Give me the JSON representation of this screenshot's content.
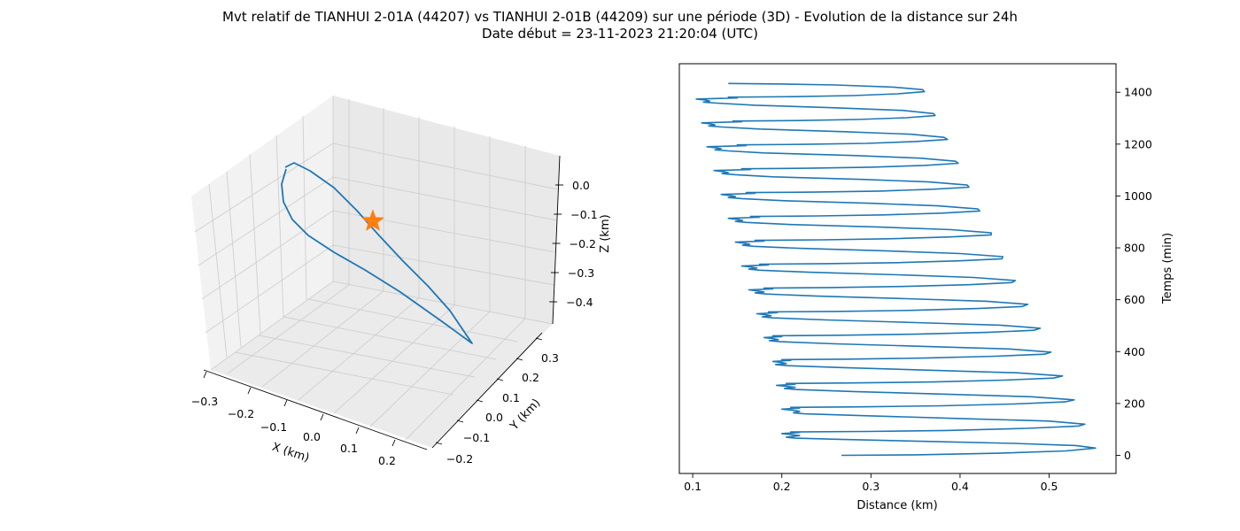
{
  "figure": {
    "title_line1": "Mvt relatif de TIANHUI 2-01A (44207) vs TIANHUI 2-01B (44209) sur une période (3D) - Evolution de la distance sur 24h",
    "title_line2": "Date début = 23-11-2023 21:20:04 (UTC)"
  },
  "colors": {
    "series": "#1f77b4",
    "marker": "#ff7f0e",
    "pane": "#f2f2f2",
    "grid": "#cfcfcf"
  },
  "chart_data": [
    {
      "type": "line3d",
      "xlabel": "X (km)",
      "ylabel": "Y (km)",
      "zlabel": "Z (km)",
      "xticks": [
        "−0.3",
        "−0.2",
        "−0.1",
        "0.0",
        "0.1",
        "0.2"
      ],
      "yticks": [
        "−0.2",
        "−0.1",
        "0.0",
        "0.1",
        "0.2",
        "0.3"
      ],
      "zticks": [
        "0.0",
        "−0.1",
        "−0.2",
        "−0.3",
        "−0.4"
      ],
      "grid": true,
      "marker": {
        "shape": "star",
        "label": ""
      }
    },
    {
      "type": "line",
      "xlabel": "Distance (km)",
      "ylabel": "Temps (min)",
      "xticks": [
        "0.1",
        "0.2",
        "0.3",
        "0.4",
        "0.5"
      ],
      "yticks": [
        "0",
        "200",
        "400",
        "600",
        "800",
        "1000",
        "1200",
        "1400"
      ],
      "xlim": [
        0.085,
        0.575
      ],
      "ylim": [
        -70,
        1510
      ],
      "y_axis_side": "right",
      "grid": false,
      "series": [
        {
          "points": [
            [
              0.267,
              0
            ],
            [
              0.351,
              2
            ],
            [
              0.444,
              8
            ],
            [
              0.519,
              17
            ],
            [
              0.552,
              28
            ],
            [
              0.53,
              38
            ],
            [
              0.46,
              46
            ],
            [
              0.36,
              54
            ],
            [
              0.26,
              62
            ],
            [
              0.215,
              66
            ],
            [
              0.205,
              70
            ],
            [
              0.22,
              76
            ],
            [
              0.21,
              80
            ],
            [
              0.2,
              84
            ],
            [
              0.22,
              88
            ],
            [
              0.21,
              90
            ],
            [
              0.297,
              92
            ],
            [
              0.385,
              96
            ],
            [
              0.475,
              104
            ],
            [
              0.533,
              113
            ],
            [
              0.54,
              120
            ],
            [
              0.5,
              132
            ],
            [
              0.4,
              142
            ],
            [
              0.3,
              152
            ],
            [
              0.225,
              160
            ],
            [
              0.213,
              164
            ],
            [
              0.22,
              170
            ],
            [
              0.212,
              174
            ],
            [
              0.2,
              178
            ],
            [
              0.22,
              182
            ],
            [
              0.21,
              185
            ],
            [
              0.29,
              187
            ],
            [
              0.38,
              191
            ],
            [
              0.46,
              198
            ],
            [
              0.518,
              206
            ],
            [
              0.528,
              214
            ],
            [
              0.48,
              226
            ],
            [
              0.38,
              236
            ],
            [
              0.28,
              246
            ],
            [
              0.215,
              254
            ],
            [
              0.203,
              258
            ],
            [
              0.215,
              262
            ],
            [
              0.205,
              266
            ],
            [
              0.194,
              270
            ],
            [
              0.215,
              274
            ],
            [
              0.205,
              277
            ],
            [
              0.28,
              279
            ],
            [
              0.37,
              283
            ],
            [
              0.45,
              290
            ],
            [
              0.505,
              298
            ],
            [
              0.515,
              306
            ],
            [
              0.465,
              318
            ],
            [
              0.37,
              328
            ],
            [
              0.27,
              338
            ],
            [
              0.205,
              346
            ],
            [
              0.193,
              350
            ],
            [
              0.205,
              354
            ],
            [
              0.2,
              358
            ],
            [
              0.19,
              362
            ],
            [
              0.21,
              366
            ],
            [
              0.2,
              369
            ],
            [
              0.275,
              371
            ],
            [
              0.36,
              375
            ],
            [
              0.44,
              382
            ],
            [
              0.495,
              390
            ],
            [
              0.502,
              398
            ],
            [
              0.455,
              410
            ],
            [
              0.36,
              420
            ],
            [
              0.26,
              430
            ],
            [
              0.198,
              438
            ],
            [
              0.186,
              442
            ],
            [
              0.196,
              446
            ],
            [
              0.19,
              450
            ],
            [
              0.18,
              454
            ],
            [
              0.2,
              458
            ],
            [
              0.19,
              461
            ],
            [
              0.265,
              463
            ],
            [
              0.35,
              467
            ],
            [
              0.43,
              474
            ],
            [
              0.483,
              482
            ],
            [
              0.49,
              490
            ],
            [
              0.445,
              502
            ],
            [
              0.35,
              512
            ],
            [
              0.25,
              522
            ],
            [
              0.19,
              530
            ],
            [
              0.178,
              534
            ],
            [
              0.188,
              538
            ],
            [
              0.182,
              542
            ],
            [
              0.172,
              546
            ],
            [
              0.195,
              550
            ],
            [
              0.185,
              553
            ],
            [
              0.26,
              555
            ],
            [
              0.345,
              559
            ],
            [
              0.42,
              566
            ],
            [
              0.47,
              574
            ],
            [
              0.476,
              582
            ],
            [
              0.43,
              594
            ],
            [
              0.34,
              604
            ],
            [
              0.24,
              614
            ],
            [
              0.182,
              622
            ],
            [
              0.17,
              626
            ],
            [
              0.18,
              630
            ],
            [
              0.172,
              634
            ],
            [
              0.163,
              638
            ],
            [
              0.19,
              642
            ],
            [
              0.18,
              645
            ],
            [
              0.255,
              647
            ],
            [
              0.335,
              651
            ],
            [
              0.41,
              658
            ],
            [
              0.458,
              666
            ],
            [
              0.462,
              674
            ],
            [
              0.415,
              686
            ],
            [
              0.33,
              696
            ],
            [
              0.23,
              706
            ],
            [
              0.175,
              714
            ],
            [
              0.163,
              718
            ],
            [
              0.172,
              722
            ],
            [
              0.165,
              726
            ],
            [
              0.155,
              730
            ],
            [
              0.185,
              734
            ],
            [
              0.175,
              737
            ],
            [
              0.25,
              739
            ],
            [
              0.33,
              743
            ],
            [
              0.4,
              750
            ],
            [
              0.447,
              758
            ],
            [
              0.448,
              766
            ],
            [
              0.4,
              778
            ],
            [
              0.32,
              788
            ],
            [
              0.22,
              798
            ],
            [
              0.168,
              806
            ],
            [
              0.156,
              810
            ],
            [
              0.164,
              814
            ],
            [
              0.158,
              818
            ],
            [
              0.148,
              822
            ],
            [
              0.18,
              826
            ],
            [
              0.17,
              829
            ],
            [
              0.245,
              831
            ],
            [
              0.32,
              835
            ],
            [
              0.39,
              842
            ],
            [
              0.435,
              850
            ],
            [
              0.435,
              858
            ],
            [
              0.39,
              870
            ],
            [
              0.31,
              880
            ],
            [
              0.21,
              890
            ],
            [
              0.16,
              898
            ],
            [
              0.148,
              902
            ],
            [
              0.156,
              906
            ],
            [
              0.15,
              910
            ],
            [
              0.14,
              914
            ],
            [
              0.175,
              918
            ],
            [
              0.165,
              921
            ],
            [
              0.24,
              923
            ],
            [
              0.315,
              927
            ],
            [
              0.38,
              934
            ],
            [
              0.422,
              942
            ],
            [
              0.42,
              950
            ],
            [
              0.375,
              962
            ],
            [
              0.3,
              972
            ],
            [
              0.2,
              982
            ],
            [
              0.155,
              990
            ],
            [
              0.14,
              994
            ],
            [
              0.148,
              998
            ],
            [
              0.142,
              1002
            ],
            [
              0.132,
              1006
            ],
            [
              0.17,
              1010
            ],
            [
              0.16,
              1013
            ],
            [
              0.235,
              1015
            ],
            [
              0.31,
              1019
            ],
            [
              0.37,
              1026
            ],
            [
              0.41,
              1034
            ],
            [
              0.408,
              1042
            ],
            [
              0.365,
              1054
            ],
            [
              0.29,
              1064
            ],
            [
              0.19,
              1074
            ],
            [
              0.148,
              1082
            ],
            [
              0.133,
              1086
            ],
            [
              0.14,
              1090
            ],
            [
              0.134,
              1094
            ],
            [
              0.124,
              1098
            ],
            [
              0.165,
              1102
            ],
            [
              0.155,
              1105
            ],
            [
              0.23,
              1107
            ],
            [
              0.3,
              1111
            ],
            [
              0.36,
              1118
            ],
            [
              0.398,
              1126
            ],
            [
              0.395,
              1134
            ],
            [
              0.355,
              1146
            ],
            [
              0.28,
              1156
            ],
            [
              0.18,
              1166
            ],
            [
              0.14,
              1174
            ],
            [
              0.125,
              1178
            ],
            [
              0.132,
              1182
            ],
            [
              0.126,
              1186
            ],
            [
              0.116,
              1190
            ],
            [
              0.16,
              1194
            ],
            [
              0.15,
              1197
            ],
            [
              0.225,
              1199
            ],
            [
              0.295,
              1203
            ],
            [
              0.35,
              1210
            ],
            [
              0.386,
              1218
            ],
            [
              0.382,
              1226
            ],
            [
              0.345,
              1238
            ],
            [
              0.27,
              1248
            ],
            [
              0.175,
              1258
            ],
            [
              0.133,
              1266
            ],
            [
              0.118,
              1270
            ],
            [
              0.125,
              1274
            ],
            [
              0.12,
              1278
            ],
            [
              0.11,
              1282
            ],
            [
              0.155,
              1286
            ],
            [
              0.145,
              1289
            ],
            [
              0.22,
              1291
            ],
            [
              0.285,
              1295
            ],
            [
              0.34,
              1302
            ],
            [
              0.372,
              1310
            ],
            [
              0.37,
              1318
            ],
            [
              0.335,
              1330
            ],
            [
              0.26,
              1340
            ],
            [
              0.17,
              1350
            ],
            [
              0.127,
              1358
            ],
            [
              0.112,
              1362
            ],
            [
              0.119,
              1366
            ],
            [
              0.114,
              1370
            ],
            [
              0.104,
              1374
            ],
            [
              0.15,
              1378
            ],
            [
              0.14,
              1381
            ],
            [
              0.215,
              1383
            ],
            [
              0.28,
              1387
            ],
            [
              0.33,
              1394
            ],
            [
              0.36,
              1402
            ],
            [
              0.358,
              1410
            ],
            [
              0.325,
              1420
            ],
            [
              0.26,
              1428
            ],
            [
              0.2,
              1432
            ],
            [
              0.14,
              1434
            ]
          ]
        }
      ]
    }
  ]
}
